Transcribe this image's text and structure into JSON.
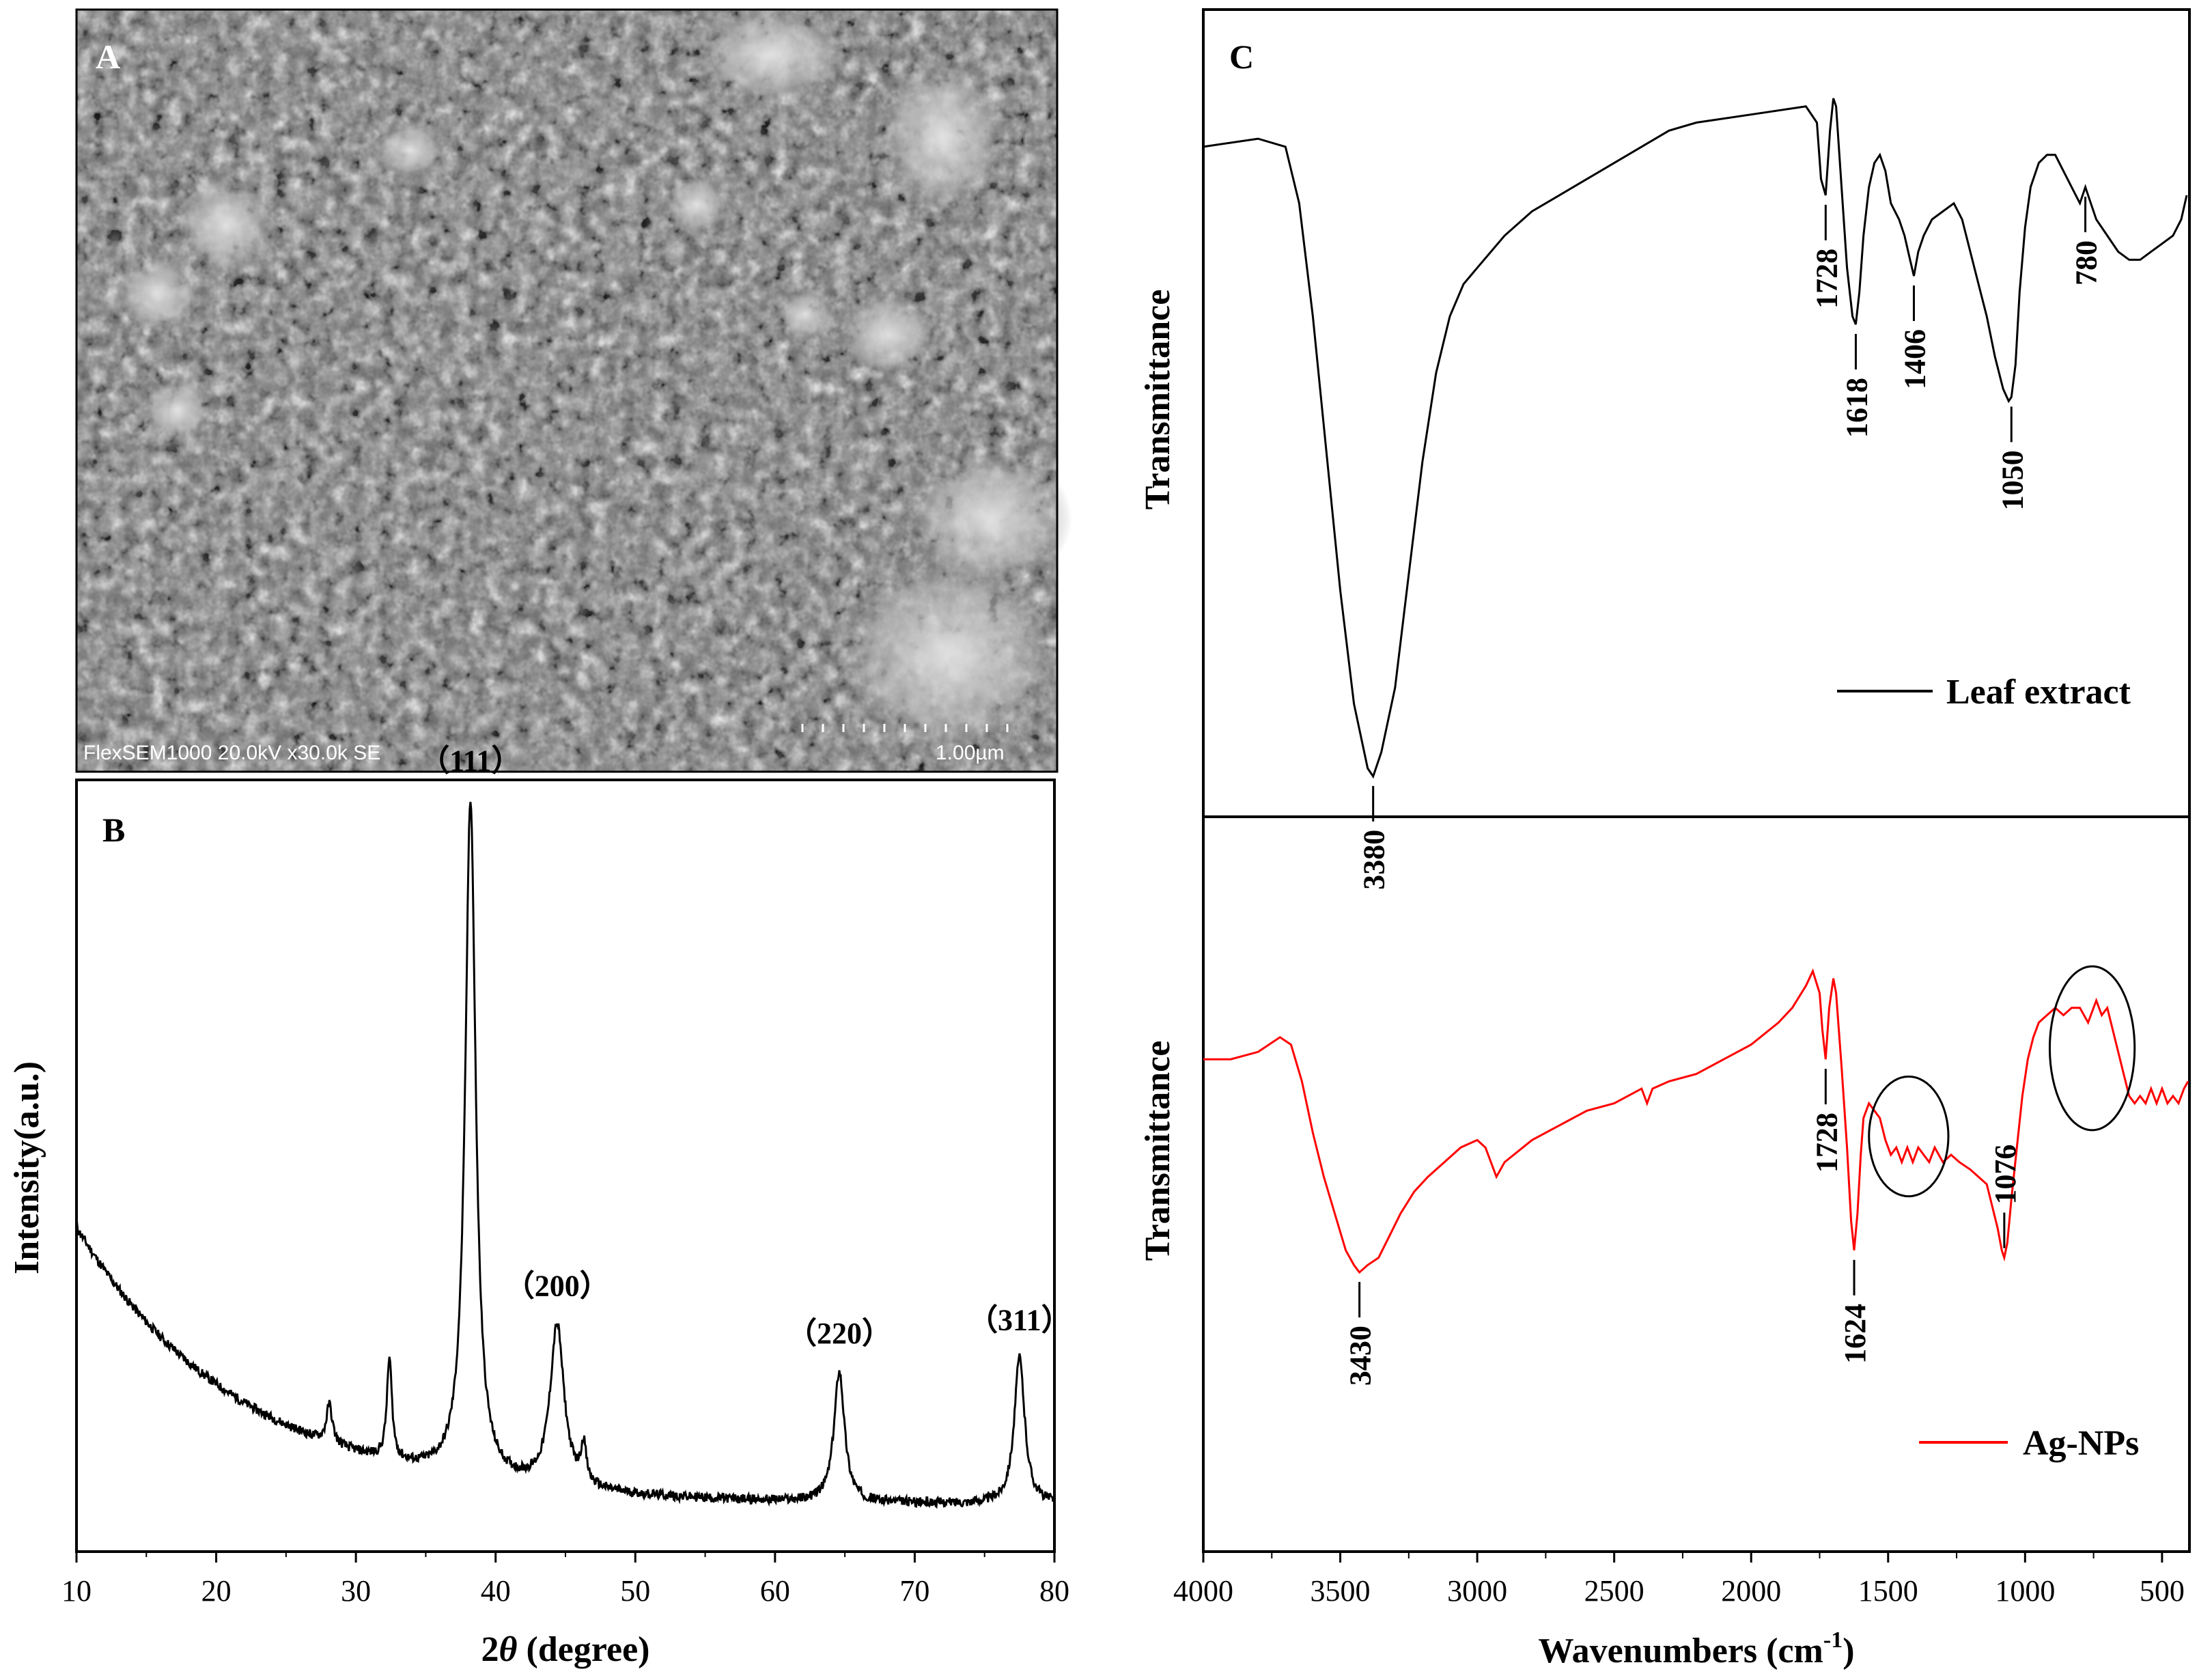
{
  "panels": {
    "A": {
      "letter": "A",
      "sem_caption": "FlexSEM1000 20.0kV x30.0k SE",
      "scale_bar_label": "1.00µm"
    },
    "B": {
      "letter": "B"
    },
    "C": {
      "letter": "C"
    }
  },
  "chart_data": [
    {
      "panel": "B",
      "type": "line",
      "xlabel_prefix": "2",
      "xlabel_symbol": "θ",
      "xlabel_suffix": " (degree)",
      "ylabel": "Intensity(a.u.)",
      "xlim": [
        10,
        80
      ],
      "xticks": [
        10,
        20,
        30,
        40,
        50,
        60,
        70,
        80
      ],
      "yticks_shown": false,
      "background": {
        "y_at_x10": 0.42,
        "decay_to": 0.06,
        "decay_scale": 12
      },
      "peaks": [
        {
          "x": 28.1,
          "height": 0.05,
          "width": 0.25
        },
        {
          "x": 32.4,
          "height": 0.13,
          "width": 0.22
        },
        {
          "x": 38.2,
          "height": 0.88,
          "width": 0.45
        },
        {
          "x": 44.4,
          "height": 0.21,
          "width": 0.6
        },
        {
          "x": 46.3,
          "height": 0.05,
          "width": 0.22
        },
        {
          "x": 64.6,
          "height": 0.17,
          "width": 0.45
        },
        {
          "x": 77.5,
          "height": 0.19,
          "width": 0.45
        }
      ],
      "annotations": [
        {
          "text": "（111）",
          "x": 38.2
        },
        {
          "text": "（200）",
          "x": 44.4
        },
        {
          "text": "（220）",
          "x": 64.6
        },
        {
          "text": "（311）",
          "x": 77.5
        }
      ]
    },
    {
      "panel": "C",
      "type": "line",
      "xlabel_prefix": "Wavenumbers (cm",
      "xlabel_sup": "-1",
      "xlabel_suffix": ")",
      "xlim": [
        4000,
        400
      ],
      "xticks": [
        4000,
        3500,
        3000,
        2500,
        2000,
        1500,
        1000,
        500
      ],
      "series": [
        {
          "name": "Leaf extract",
          "ylabel": "Transmittance",
          "color": "#000000",
          "points": [
            [
              4000,
              0.83
            ],
            [
              3800,
              0.84
            ],
            [
              3700,
              0.83
            ],
            [
              3650,
              0.76
            ],
            [
              3600,
              0.62
            ],
            [
              3550,
              0.45
            ],
            [
              3500,
              0.28
            ],
            [
              3450,
              0.14
            ],
            [
              3400,
              0.06
            ],
            [
              3380,
              0.05
            ],
            [
              3350,
              0.08
            ],
            [
              3300,
              0.16
            ],
            [
              3250,
              0.3
            ],
            [
              3200,
              0.44
            ],
            [
              3150,
              0.55
            ],
            [
              3100,
              0.62
            ],
            [
              3050,
              0.66
            ],
            [
              3000,
              0.68
            ],
            [
              2900,
              0.72
            ],
            [
              2800,
              0.75
            ],
            [
              2700,
              0.77
            ],
            [
              2600,
              0.79
            ],
            [
              2500,
              0.81
            ],
            [
              2400,
              0.83
            ],
            [
              2300,
              0.85
            ],
            [
              2200,
              0.86
            ],
            [
              2000,
              0.87
            ],
            [
              1800,
              0.88
            ],
            [
              1760,
              0.86
            ],
            [
              1745,
              0.79
            ],
            [
              1728,
              0.77
            ],
            [
              1712,
              0.85
            ],
            [
              1700,
              0.89
            ],
            [
              1690,
              0.88
            ],
            [
              1670,
              0.78
            ],
            [
              1650,
              0.68
            ],
            [
              1630,
              0.62
            ],
            [
              1618,
              0.61
            ],
            [
              1605,
              0.65
            ],
            [
              1590,
              0.72
            ],
            [
              1570,
              0.78
            ],
            [
              1550,
              0.81
            ],
            [
              1530,
              0.82
            ],
            [
              1510,
              0.8
            ],
            [
              1490,
              0.76
            ],
            [
              1460,
              0.74
            ],
            [
              1440,
              0.72
            ],
            [
              1420,
              0.69
            ],
            [
              1406,
              0.67
            ],
            [
              1390,
              0.7
            ],
            [
              1370,
              0.72
            ],
            [
              1340,
              0.74
            ],
            [
              1300,
              0.75
            ],
            [
              1260,
              0.76
            ],
            [
              1230,
              0.74
            ],
            [
              1200,
              0.7
            ],
            [
              1170,
              0.66
            ],
            [
              1140,
              0.62
            ],
            [
              1110,
              0.57
            ],
            [
              1080,
              0.53
            ],
            [
              1060,
              0.515
            ],
            [
              1050,
              0.52
            ],
            [
              1035,
              0.56
            ],
            [
              1020,
              0.65
            ],
            [
              1000,
              0.73
            ],
            [
              980,
              0.78
            ],
            [
              950,
              0.81
            ],
            [
              920,
              0.82
            ],
            [
              890,
              0.82
            ],
            [
              860,
              0.8
            ],
            [
              830,
              0.78
            ],
            [
              800,
              0.76
            ],
            [
              780,
              0.78
            ],
            [
              760,
              0.76
            ],
            [
              740,
              0.74
            ],
            [
              700,
              0.72
            ],
            [
              660,
              0.7
            ],
            [
              620,
              0.69
            ],
            [
              580,
              0.69
            ],
            [
              540,
              0.7
            ],
            [
              500,
              0.71
            ],
            [
              460,
              0.72
            ],
            [
              430,
              0.74
            ],
            [
              410,
              0.77
            ]
          ]
        },
        {
          "name": "Ag-NPs",
          "ylabel": "Transmittance",
          "color": "#ff0000",
          "points": [
            [
              4000,
              0.67
            ],
            [
              3900,
              0.67
            ],
            [
              3800,
              0.68
            ],
            [
              3720,
              0.7
            ],
            [
              3680,
              0.69
            ],
            [
              3640,
              0.64
            ],
            [
              3600,
              0.57
            ],
            [
              3560,
              0.51
            ],
            [
              3520,
              0.46
            ],
            [
              3480,
              0.41
            ],
            [
              3450,
              0.39
            ],
            [
              3430,
              0.38
            ],
            [
              3400,
              0.39
            ],
            [
              3360,
              0.4
            ],
            [
              3320,
              0.43
            ],
            [
              3280,
              0.46
            ],
            [
              3230,
              0.49
            ],
            [
              3180,
              0.51
            ],
            [
              3120,
              0.53
            ],
            [
              3060,
              0.55
            ],
            [
              3000,
              0.56
            ],
            [
              2970,
              0.55
            ],
            [
              2930,
              0.51
            ],
            [
              2900,
              0.53
            ],
            [
              2800,
              0.56
            ],
            [
              2700,
              0.58
            ],
            [
              2600,
              0.6
            ],
            [
              2500,
              0.61
            ],
            [
              2400,
              0.63
            ],
            [
              2380,
              0.61
            ],
            [
              2360,
              0.63
            ],
            [
              2300,
              0.64
            ],
            [
              2200,
              0.65
            ],
            [
              2100,
              0.67
            ],
            [
              2000,
              0.69
            ],
            [
              1900,
              0.72
            ],
            [
              1850,
              0.74
            ],
            [
              1800,
              0.77
            ],
            [
              1775,
              0.79
            ],
            [
              1750,
              0.76
            ],
            [
              1740,
              0.71
            ],
            [
              1728,
              0.67
            ],
            [
              1715,
              0.74
            ],
            [
              1700,
              0.78
            ],
            [
              1690,
              0.76
            ],
            [
              1670,
              0.66
            ],
            [
              1650,
              0.55
            ],
            [
              1635,
              0.45
            ],
            [
              1624,
              0.41
            ],
            [
              1612,
              0.46
            ],
            [
              1600,
              0.54
            ],
            [
              1590,
              0.59
            ],
            [
              1570,
              0.61
            ],
            [
              1550,
              0.6
            ],
            [
              1530,
              0.59
            ],
            [
              1510,
              0.56
            ],
            [
              1490,
              0.54
            ],
            [
              1470,
              0.55
            ],
            [
              1450,
              0.53
            ],
            [
              1430,
              0.55
            ],
            [
              1410,
              0.53
            ],
            [
              1390,
              0.55
            ],
            [
              1370,
              0.54
            ],
            [
              1350,
              0.53
            ],
            [
              1330,
              0.55
            ],
            [
              1300,
              0.53
            ],
            [
              1270,
              0.54
            ],
            [
              1240,
              0.53
            ],
            [
              1200,
              0.52
            ],
            [
              1170,
              0.51
            ],
            [
              1140,
              0.5
            ],
            [
              1120,
              0.47
            ],
            [
              1100,
              0.44
            ],
            [
              1085,
              0.41
            ],
            [
              1076,
              0.4
            ],
            [
              1065,
              0.42
            ],
            [
              1050,
              0.48
            ],
            [
              1030,
              0.55
            ],
            [
              1010,
              0.62
            ],
            [
              990,
              0.67
            ],
            [
              970,
              0.7
            ],
            [
              950,
              0.72
            ],
            [
              920,
              0.73
            ],
            [
              890,
              0.74
            ],
            [
              860,
              0.73
            ],
            [
              830,
              0.74
            ],
            [
              800,
              0.74
            ],
            [
              770,
              0.72
            ],
            [
              740,
              0.75
            ],
            [
              720,
              0.73
            ],
            [
              700,
              0.74
            ],
            [
              680,
              0.71
            ],
            [
              660,
              0.68
            ],
            [
              640,
              0.65
            ],
            [
              620,
              0.62
            ],
            [
              600,
              0.61
            ],
            [
              580,
              0.62
            ],
            [
              560,
              0.61
            ],
            [
              540,
              0.63
            ],
            [
              520,
              0.61
            ],
            [
              500,
              0.63
            ],
            [
              480,
              0.61
            ],
            [
              460,
              0.62
            ],
            [
              440,
              0.61
            ],
            [
              420,
              0.63
            ],
            [
              405,
              0.64
            ]
          ]
        }
      ],
      "peak_labels": [
        {
          "series": 0,
          "text": "3380",
          "x": 3380,
          "side": "below"
        },
        {
          "series": 0,
          "text": "1728",
          "x": 1728,
          "side": "below"
        },
        {
          "series": 0,
          "text": "1618",
          "x": 1618,
          "side": "below"
        },
        {
          "series": 0,
          "text": "1406",
          "x": 1406,
          "side": "below"
        },
        {
          "series": 0,
          "text": "1050",
          "x": 1050,
          "side": "below"
        },
        {
          "series": 0,
          "text": "780",
          "x": 780,
          "side": "below"
        },
        {
          "series": 1,
          "text": "3430",
          "x": 3430,
          "side": "below"
        },
        {
          "series": 1,
          "text": "1728",
          "x": 1728,
          "side": "below"
        },
        {
          "series": 1,
          "text": "1624",
          "x": 1624,
          "side": "below"
        },
        {
          "series": 1,
          "text": "1076",
          "x": 1076,
          "side": "above"
        }
      ],
      "highlights": [
        {
          "series": 1,
          "shape": "ellipse",
          "x_from": 1550,
          "x_to": 1300
        },
        {
          "series": 1,
          "shape": "ellipse",
          "x_from": 890,
          "x_to": 620
        }
      ]
    }
  ]
}
